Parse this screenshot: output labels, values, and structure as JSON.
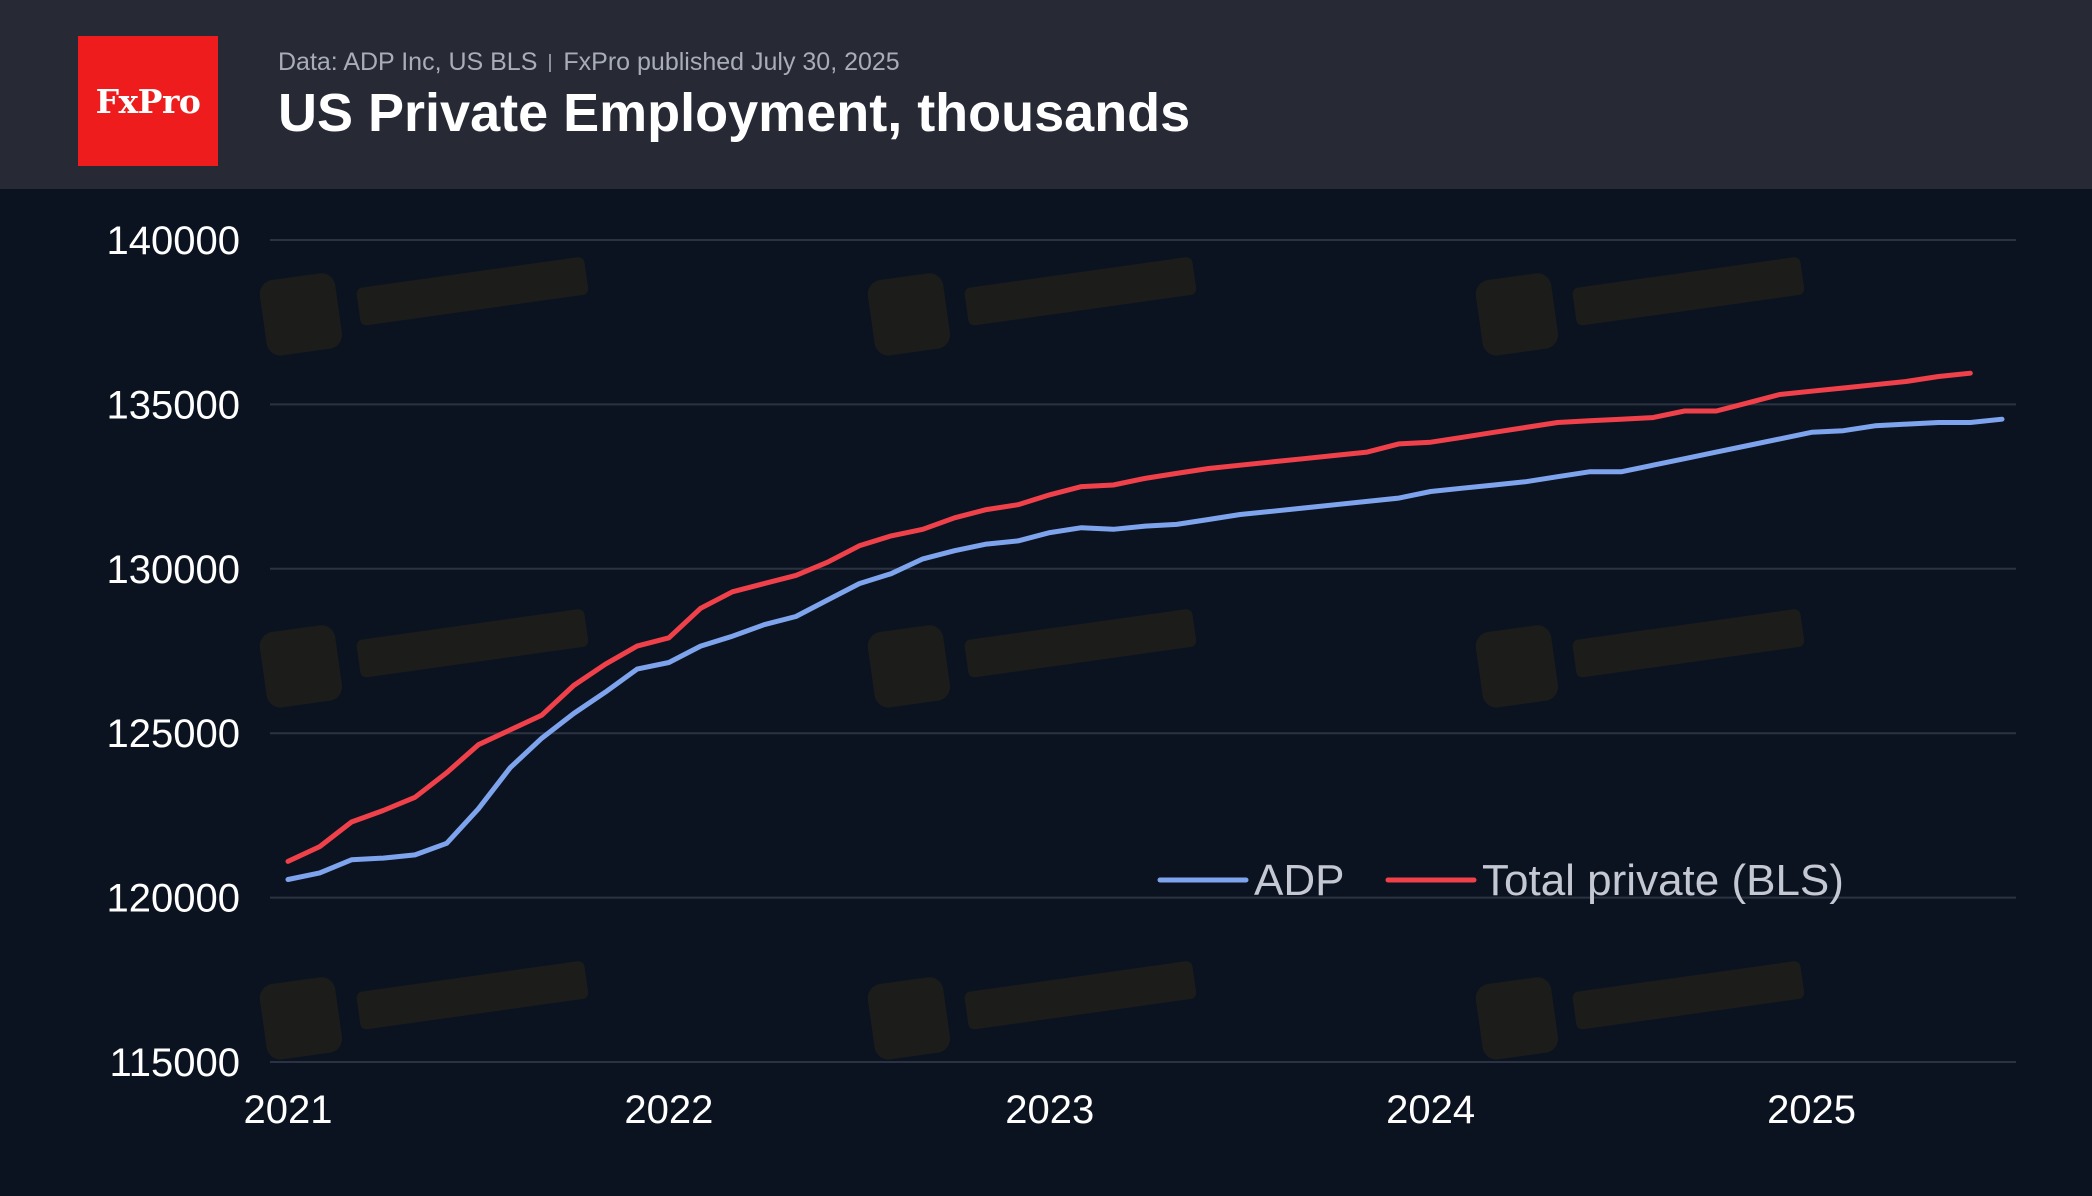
{
  "header": {
    "logo_text": "FxPro",
    "source_left": "Data: ADP Inc, US BLS",
    "source_right": "FxPro published July 30, 2025",
    "title": "US Private Employment, thousands"
  },
  "colors": {
    "adp": "#7fa4ee",
    "bls": "#f0414b",
    "grid": "#2b3342",
    "background": "#0c1320",
    "header": "#272a35",
    "logo": "#ee1c1c"
  },
  "chart_data": {
    "type": "line",
    "title": "US Private Employment, thousands",
    "xlabel": "",
    "ylabel": "",
    "x_unit": "months",
    "xlim": [
      "2021-01",
      "2025-07"
    ],
    "ylim": [
      115000,
      140000
    ],
    "y_ticks": [
      115000,
      120000,
      125000,
      130000,
      135000,
      140000
    ],
    "x_ticks": [
      {
        "label": "2021",
        "at": "2021-01"
      },
      {
        "label": "2022",
        "at": "2022-01"
      },
      {
        "label": "2023",
        "at": "2023-01"
      },
      {
        "label": "2024",
        "at": "2024-01"
      },
      {
        "label": "2025",
        "at": "2025-01"
      }
    ],
    "grid": true,
    "legend_position": "bottom-right",
    "x": [
      "2021-01",
      "2021-02",
      "2021-03",
      "2021-04",
      "2021-05",
      "2021-06",
      "2021-07",
      "2021-08",
      "2021-09",
      "2021-10",
      "2021-11",
      "2021-12",
      "2022-01",
      "2022-02",
      "2022-03",
      "2022-04",
      "2022-05",
      "2022-06",
      "2022-07",
      "2022-08",
      "2022-09",
      "2022-10",
      "2022-11",
      "2022-12",
      "2023-01",
      "2023-02",
      "2023-03",
      "2023-04",
      "2023-05",
      "2023-06",
      "2023-07",
      "2023-08",
      "2023-09",
      "2023-10",
      "2023-11",
      "2023-12",
      "2024-01",
      "2024-02",
      "2024-03",
      "2024-04",
      "2024-05",
      "2024-06",
      "2024-07",
      "2024-08",
      "2024-09",
      "2024-10",
      "2024-11",
      "2024-12",
      "2025-01",
      "2025-02",
      "2025-03",
      "2025-04",
      "2025-05",
      "2025-06",
      "2025-07"
    ],
    "series": [
      {
        "name": "ADP",
        "color": "#7fa4ee",
        "values": [
          120550,
          120750,
          121150,
          121200,
          121300,
          121650,
          122700,
          123950,
          124850,
          125600,
          126250,
          126950,
          127150,
          127650,
          127950,
          128300,
          128550,
          129050,
          129550,
          129850,
          130300,
          130550,
          130750,
          130850,
          131100,
          131250,
          131200,
          131300,
          131350,
          131500,
          131650,
          131750,
          131850,
          131950,
          132050,
          132150,
          132350,
          132450,
          132550,
          132650,
          132800,
          132950,
          132950,
          133150,
          133350,
          133550,
          133750,
          133950,
          134150,
          134200,
          134350,
          134400,
          134450,
          134450,
          134550
        ]
      },
      {
        "name": "Total private (BLS)",
        "color": "#f0414b",
        "values": [
          121100,
          121550,
          122300,
          122650,
          123050,
          123800,
          124650,
          125100,
          125550,
          126450,
          127100,
          127650,
          127900,
          128800,
          129300,
          129550,
          129800,
          130200,
          130700,
          131000,
          131200,
          131550,
          131800,
          131950,
          132250,
          132500,
          132550,
          132750,
          132900,
          133050,
          133150,
          133250,
          133350,
          133450,
          133550,
          133800,
          133850,
          134000,
          134150,
          134300,
          134450,
          134500,
          134550,
          134600,
          134800,
          134800,
          135050,
          135300,
          135400,
          135500,
          135600,
          135700,
          135850,
          135950,
          null
        ]
      }
    ]
  }
}
